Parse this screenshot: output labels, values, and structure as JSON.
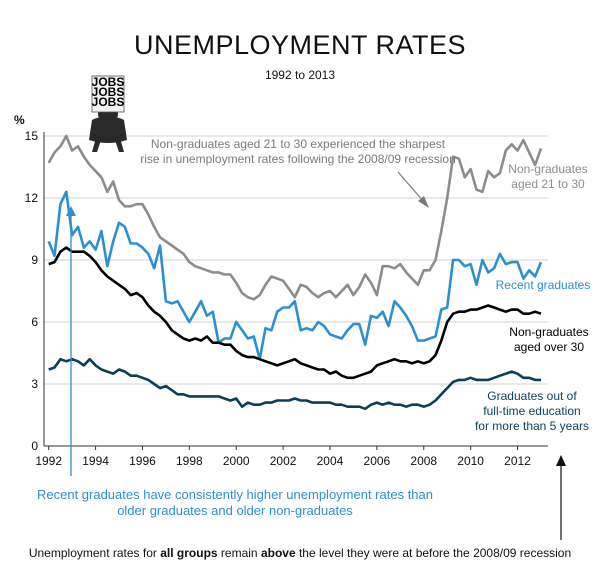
{
  "chart_data": {
    "type": "line",
    "title": "UNEMPLOYMENT RATES",
    "subtitle": "1992 to 2013",
    "ylabel": "%",
    "xlim": [
      1991.8,
      2013.3
    ],
    "ylim": [
      0,
      15
    ],
    "yticks": [
      0,
      3,
      6,
      9,
      12,
      15
    ],
    "xticks": [
      1992,
      1994,
      1996,
      1998,
      2000,
      2002,
      2004,
      2006,
      2008,
      2010,
      2012
    ],
    "grid": "horizontal",
    "series": [
      {
        "name": "Non-graduates aged 21 to 30",
        "color": "#8c8c8c",
        "x": [
          1992,
          1992.25,
          1992.5,
          1992.75,
          1993,
          1993.25,
          1993.5,
          1993.75,
          1994,
          1994.25,
          1994.5,
          1994.75,
          1995,
          1995.25,
          1995.5,
          1995.75,
          1996,
          1996.25,
          1996.5,
          1996.75,
          1997,
          1997.25,
          1997.5,
          1997.75,
          1998,
          1998.25,
          1998.5,
          1998.75,
          1999,
          1999.25,
          1999.5,
          1999.75,
          2000,
          2000.25,
          2000.5,
          2000.75,
          2001,
          2001.25,
          2001.5,
          2001.75,
          2002,
          2002.25,
          2002.5,
          2002.75,
          2003,
          2003.25,
          2003.5,
          2003.75,
          2004,
          2004.25,
          2004.5,
          2004.75,
          2005,
          2005.25,
          2005.5,
          2005.75,
          2006,
          2006.25,
          2006.5,
          2006.75,
          2007,
          2007.25,
          2007.5,
          2007.75,
          2008,
          2008.25,
          2008.5,
          2008.75,
          2009,
          2009.25,
          2009.5,
          2009.75,
          2010,
          2010.25,
          2010.5,
          2010.75,
          2011,
          2011.25,
          2011.5,
          2011.75,
          2012,
          2012.25,
          2012.5,
          2012.75,
          2013
        ],
        "values": [
          13.7,
          14.2,
          14.5,
          15.0,
          14.3,
          14.5,
          14.0,
          13.6,
          13.3,
          13.0,
          12.3,
          12.8,
          11.9,
          11.6,
          11.6,
          11.7,
          11.7,
          11.2,
          10.6,
          10.1,
          9.9,
          9.7,
          9.5,
          9.3,
          8.9,
          8.7,
          8.6,
          8.5,
          8.4,
          8.4,
          8.3,
          8.3,
          7.9,
          7.4,
          7.2,
          7.1,
          7.3,
          7.8,
          8.2,
          8.1,
          8.0,
          7.6,
          7.2,
          7.8,
          7.7,
          7.4,
          7.2,
          7.4,
          7.5,
          7.2,
          7.5,
          7.8,
          7.3,
          7.7,
          8.3,
          7.9,
          7.3,
          8.7,
          8.7,
          8.6,
          8.8,
          8.4,
          8.1,
          7.8,
          8.5,
          8.5,
          9.0,
          10.4,
          12.0,
          14.0,
          13.9,
          13.0,
          13.4,
          12.4,
          12.3,
          13.3,
          13.0,
          13.2,
          14.3,
          14.6,
          14.3,
          14.8,
          14.2,
          13.6,
          14.4
        ]
      },
      {
        "name": "Recent graduates",
        "color": "#2e8fcf",
        "x": [
          1992,
          1992.25,
          1992.5,
          1992.75,
          1993,
          1993.25,
          1993.5,
          1993.75,
          1994,
          1994.25,
          1994.5,
          1994.75,
          1995,
          1995.25,
          1995.5,
          1995.75,
          1996,
          1996.25,
          1996.5,
          1996.75,
          1997,
          1997.25,
          1997.5,
          1997.75,
          1998,
          1998.25,
          1998.5,
          1998.75,
          1999,
          1999.25,
          1999.5,
          1999.75,
          2000,
          2000.25,
          2000.5,
          2000.75,
          2001,
          2001.25,
          2001.5,
          2001.75,
          2002,
          2002.25,
          2002.5,
          2002.75,
          2003,
          2003.25,
          2003.5,
          2003.75,
          2004,
          2004.25,
          2004.5,
          2004.75,
          2005,
          2005.25,
          2005.5,
          2005.75,
          2006,
          2006.25,
          2006.5,
          2006.75,
          2007,
          2007.25,
          2007.5,
          2007.75,
          2008,
          2008.25,
          2008.5,
          2008.75,
          2009,
          2009.25,
          2009.5,
          2009.75,
          2010,
          2010.25,
          2010.5,
          2010.75,
          2011,
          2011.25,
          2011.5,
          2011.75,
          2012,
          2012.25,
          2012.5,
          2012.75,
          2013
        ],
        "values": [
          9.9,
          9.2,
          11.7,
          12.3,
          10.2,
          10.6,
          9.6,
          9.9,
          9.5,
          10.4,
          8.7,
          9.9,
          10.8,
          10.6,
          9.8,
          9.8,
          9.6,
          9.3,
          8.6,
          9.7,
          7.0,
          6.9,
          7.0,
          6.5,
          6.0,
          6.5,
          7.0,
          6.3,
          6.5,
          5.0,
          5.2,
          5.2,
          6.0,
          5.6,
          5.2,
          5.3,
          4.2,
          5.7,
          5.6,
          6.5,
          6.7,
          6.7,
          7.0,
          5.6,
          5.7,
          5.6,
          6.0,
          5.8,
          5.4,
          5.3,
          5.2,
          5.6,
          5.9,
          5.9,
          4.9,
          6.3,
          6.2,
          6.5,
          5.8,
          7.0,
          6.7,
          6.3,
          5.8,
          5.1,
          5.1,
          5.2,
          5.3,
          6.6,
          6.7,
          9.0,
          9.0,
          8.7,
          8.8,
          7.8,
          9.0,
          8.4,
          8.6,
          9.3,
          8.8,
          8.9,
          8.9,
          8.1,
          8.5,
          8.2,
          8.9
        ]
      },
      {
        "name": "Non-graduates aged over 30",
        "color": "#000000",
        "x": [
          1992,
          1992.25,
          1992.5,
          1992.75,
          1993,
          1993.25,
          1993.5,
          1993.75,
          1994,
          1994.25,
          1994.5,
          1994.75,
          1995,
          1995.25,
          1995.5,
          1995.75,
          1996,
          1996.25,
          1996.5,
          1996.75,
          1997,
          1997.25,
          1997.5,
          1997.75,
          1998,
          1998.25,
          1998.5,
          1998.75,
          1999,
          1999.25,
          1999.5,
          1999.75,
          2000,
          2000.25,
          2000.5,
          2000.75,
          2001,
          2001.25,
          2001.5,
          2001.75,
          2002,
          2002.25,
          2002.5,
          2002.75,
          2003,
          2003.25,
          2003.5,
          2003.75,
          2004,
          2004.25,
          2004.5,
          2004.75,
          2005,
          2005.25,
          2005.5,
          2005.75,
          2006,
          2006.25,
          2006.5,
          2006.75,
          2007,
          2007.25,
          2007.5,
          2007.75,
          2008,
          2008.25,
          2008.5,
          2008.75,
          2009,
          2009.25,
          2009.5,
          2009.75,
          2010,
          2010.25,
          2010.5,
          2010.75,
          2011,
          2011.25,
          2011.5,
          2011.75,
          2012,
          2012.25,
          2012.5,
          2012.75,
          2013
        ],
        "values": [
          8.8,
          8.9,
          9.4,
          9.6,
          9.4,
          9.4,
          9.4,
          9.2,
          8.9,
          8.5,
          8.2,
          8.0,
          7.8,
          7.6,
          7.3,
          7.4,
          7.2,
          6.8,
          6.5,
          6.3,
          6.0,
          5.6,
          5.4,
          5.2,
          5.1,
          5.2,
          5.1,
          5.3,
          5.0,
          5.0,
          4.9,
          4.9,
          4.6,
          4.4,
          4.3,
          4.3,
          4.2,
          4.1,
          4.0,
          3.9,
          4.0,
          4.1,
          4.2,
          4.0,
          3.9,
          3.8,
          3.7,
          3.7,
          3.5,
          3.6,
          3.4,
          3.3,
          3.3,
          3.4,
          3.5,
          3.6,
          3.9,
          4.0,
          4.1,
          4.2,
          4.1,
          4.1,
          4.0,
          4.1,
          4.0,
          4.1,
          4.4,
          5.1,
          6.0,
          6.4,
          6.5,
          6.5,
          6.6,
          6.6,
          6.7,
          6.8,
          6.7,
          6.6,
          6.5,
          6.6,
          6.6,
          6.4,
          6.4,
          6.5,
          6.4
        ]
      },
      {
        "name": "Graduates out of full-time education for more than 5 years",
        "color": "#0b3f57",
        "x": [
          1992,
          1992.25,
          1992.5,
          1992.75,
          1993,
          1993.25,
          1993.5,
          1993.75,
          1994,
          1994.25,
          1994.5,
          1994.75,
          1995,
          1995.25,
          1995.5,
          1995.75,
          1996,
          1996.25,
          1996.5,
          1996.75,
          1997,
          1997.25,
          1997.5,
          1997.75,
          1998,
          1998.25,
          1998.5,
          1998.75,
          1999,
          1999.25,
          1999.5,
          1999.75,
          2000,
          2000.25,
          2000.5,
          2000.75,
          2001,
          2001.25,
          2001.5,
          2001.75,
          2002,
          2002.25,
          2002.5,
          2002.75,
          2003,
          2003.25,
          2003.5,
          2003.75,
          2004,
          2004.25,
          2004.5,
          2004.75,
          2005,
          2005.25,
          2005.5,
          2005.75,
          2006,
          2006.25,
          2006.5,
          2006.75,
          2007,
          2007.25,
          2007.5,
          2007.75,
          2008,
          2008.25,
          2008.5,
          2008.75,
          2009,
          2009.25,
          2009.5,
          2009.75,
          2010,
          2010.25,
          2010.5,
          2010.75,
          2011,
          2011.25,
          2011.5,
          2011.75,
          2012,
          2012.25,
          2012.5,
          2012.75,
          2013
        ],
        "values": [
          3.7,
          3.8,
          4.2,
          4.1,
          4.2,
          4.1,
          3.9,
          4.2,
          3.9,
          3.7,
          3.6,
          3.5,
          3.7,
          3.6,
          3.4,
          3.4,
          3.3,
          3.2,
          3.0,
          2.8,
          2.9,
          2.7,
          2.5,
          2.5,
          2.4,
          2.4,
          2.4,
          2.4,
          2.4,
          2.4,
          2.3,
          2.2,
          2.3,
          1.9,
          2.1,
          2.0,
          2.0,
          2.1,
          2.1,
          2.2,
          2.2,
          2.2,
          2.3,
          2.2,
          2.2,
          2.1,
          2.1,
          2.1,
          2.1,
          2.0,
          2.0,
          1.9,
          1.9,
          1.9,
          1.8,
          2.0,
          2.1,
          2.0,
          2.1,
          2.0,
          2.0,
          1.9,
          2.0,
          2.0,
          1.9,
          2.0,
          2.2,
          2.5,
          2.8,
          3.1,
          3.2,
          3.2,
          3.3,
          3.2,
          3.2,
          3.2,
          3.3,
          3.4,
          3.5,
          3.6,
          3.5,
          3.3,
          3.3,
          3.2,
          3.2
        ]
      }
    ],
    "annotations": {
      "callout_lines": [
        "Non-graduates aged 21 to 30 experienced the sharpest",
        "rise in unemployment rates following the 2008/09 recession"
      ],
      "label_nongrad_young": [
        "Non-graduates",
        "aged 21 to 30"
      ],
      "label_recent": [
        "Recent graduates"
      ],
      "label_nongrad_old": [
        "Non-graduates",
        "aged over 30"
      ],
      "label_grad_5yrs": [
        "Graduates out of",
        "full-time education",
        "for more than 5 years"
      ],
      "blue_note": "Recent graduates have consistently higher unemployment rates than older graduates and older non-graduates",
      "jobs_sign": [
        "JOBS",
        "JOBS",
        "JOBS"
      ],
      "bottom_note": {
        "before_bold1": "Unemployment rates for ",
        "bold1": "all groups",
        "middle": " remain ",
        "bold2": "above",
        "after": " the level they were at before the 2008/09 recession"
      }
    }
  }
}
